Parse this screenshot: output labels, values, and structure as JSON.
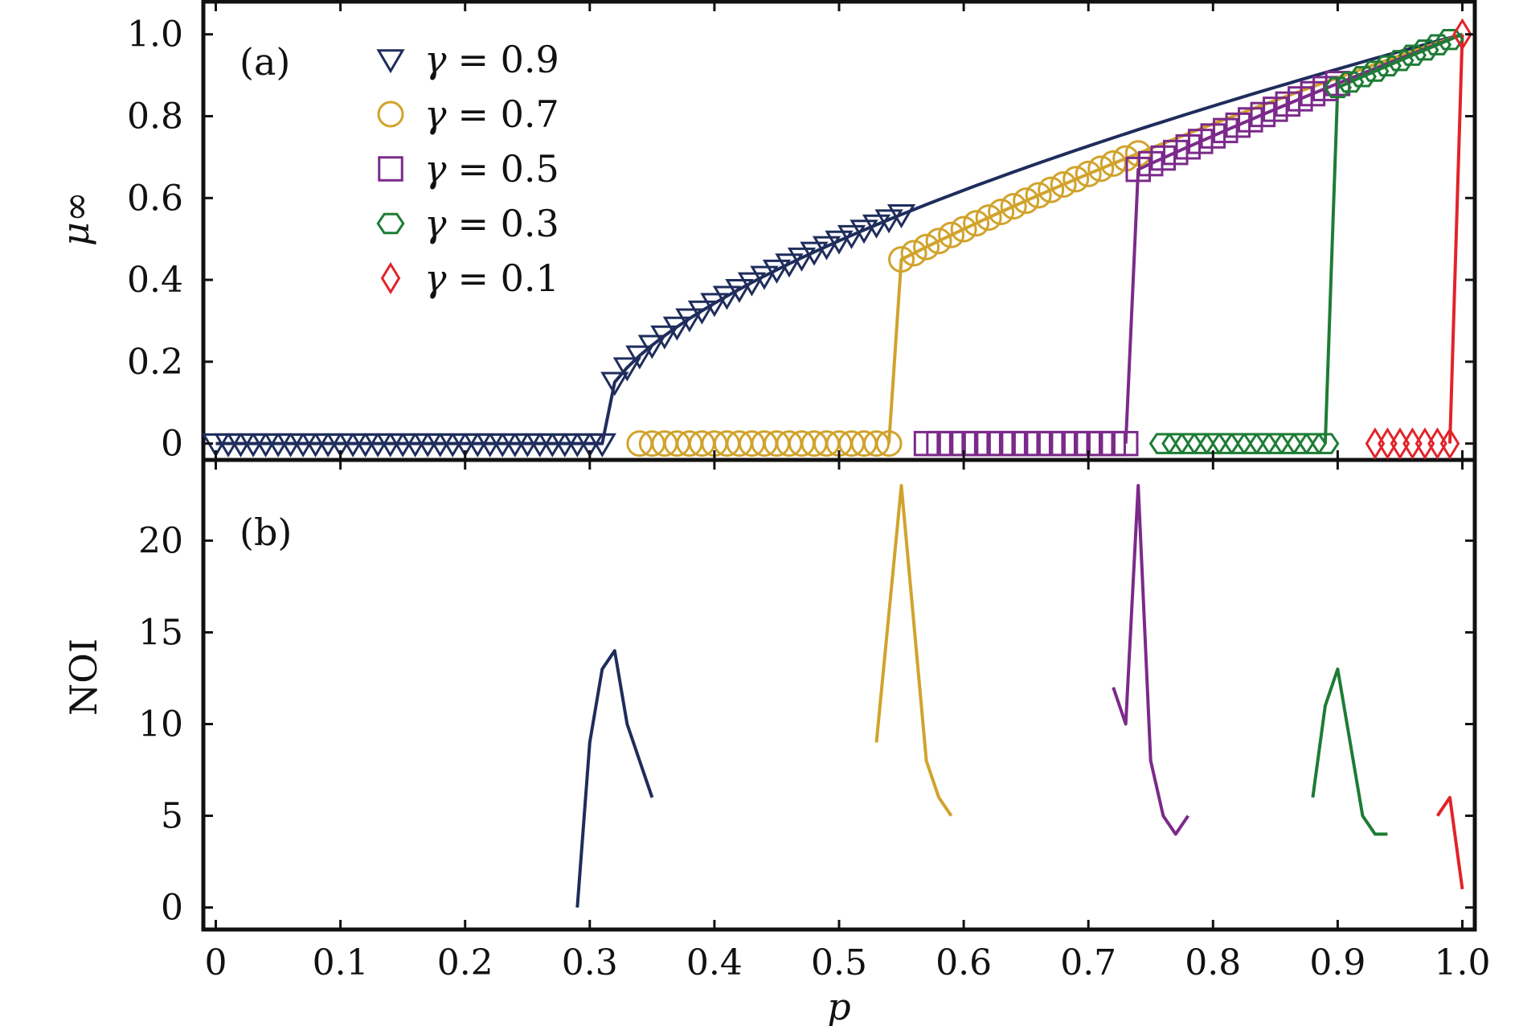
{
  "chart_data": [
    {
      "panel_label": "(a)",
      "type": "line",
      "xlabel": "p",
      "ylabel": "μ∞",
      "xlim": [
        -0.01,
        1.01
      ],
      "ylim": [
        -0.04,
        1.08
      ],
      "yticks": [
        0,
        0.2,
        0.4,
        0.6,
        0.8,
        1.0
      ],
      "ytick_labels": [
        "0",
        "0.2",
        "0.4",
        "0.6",
        "0.8",
        "1.0"
      ],
      "legend_position": "top-left",
      "series": [
        {
          "name": "γ = 0.9",
          "gamma_label": "γ",
          "value_label": "= 0.9",
          "marker": "triangle-down",
          "color": "#1f2d5c",
          "pc": 0.31,
          "jump": 0.15,
          "markers_from": 0.0
        },
        {
          "name": "γ = 0.7",
          "gamma_label": "γ",
          "value_label": "= 0.7",
          "marker": "circle",
          "color": "#d1a32c",
          "pc": 0.54,
          "jump": 0.45,
          "markers_from": 0.34
        },
        {
          "name": "γ = 0.5",
          "gamma_label": "γ",
          "value_label": "= 0.5",
          "marker": "square",
          "color": "#7b2a8a",
          "pc": 0.73,
          "jump": 0.67,
          "markers_from": 0.57
        },
        {
          "name": "γ = 0.3",
          "gamma_label": "γ",
          "value_label": "= 0.3",
          "marker": "hexagon",
          "color": "#1e7c35",
          "pc": 0.89,
          "jump": 0.87,
          "markers_from": 0.76
        },
        {
          "name": "γ = 0.1",
          "gamma_label": "γ",
          "value_label": "= 0.1",
          "marker": "diamond",
          "color": "#e2232a",
          "pc": 0.99,
          "jump": 1.0,
          "markers_from": 0.93
        }
      ]
    },
    {
      "panel_label": "(b)",
      "type": "line",
      "xlabel": "p",
      "ylabel": "NOI",
      "xlim": [
        -0.01,
        1.01
      ],
      "ylim": [
        -1.2,
        24.4
      ],
      "xticks": [
        0,
        0.1,
        0.2,
        0.3,
        0.4,
        0.5,
        0.6,
        0.7,
        0.8,
        0.9,
        1.0
      ],
      "xtick_labels": [
        "0",
        "0.1",
        "0.2",
        "0.3",
        "0.4",
        "0.5",
        "0.6",
        "0.7",
        "0.8",
        "0.9",
        "1.0"
      ],
      "yticks": [
        0,
        5,
        10,
        15,
        20
      ],
      "ytick_labels": [
        "0",
        "5",
        "10",
        "15",
        "20"
      ],
      "series": [
        {
          "name": "γ = 0.9",
          "color": "#1f2d5c",
          "x": [
            0.29,
            0.3,
            0.31,
            0.32,
            0.33,
            0.35
          ],
          "y": [
            0,
            9,
            13,
            14,
            10,
            6
          ]
        },
        {
          "name": "γ = 0.7",
          "color": "#d1a32c",
          "x": [
            0.53,
            0.55,
            0.57,
            0.58,
            0.59
          ],
          "y": [
            9,
            23,
            8,
            6,
            5
          ]
        },
        {
          "name": "γ = 0.5",
          "color": "#7b2a8a",
          "x": [
            0.72,
            0.73,
            0.74,
            0.75,
            0.76,
            0.77,
            0.78
          ],
          "y": [
            12,
            10,
            23,
            8,
            5,
            4,
            5
          ]
        },
        {
          "name": "γ = 0.3",
          "color": "#1e7c35",
          "x": [
            0.88,
            0.89,
            0.9,
            0.91,
            0.92,
            0.93,
            0.94
          ],
          "y": [
            6,
            11,
            13,
            9,
            5,
            4,
            4
          ]
        },
        {
          "name": "γ = 0.1",
          "color": "#e2232a",
          "x": [
            0.98,
            0.99,
            1.0
          ],
          "y": [
            5,
            6,
            1
          ]
        }
      ]
    }
  ]
}
